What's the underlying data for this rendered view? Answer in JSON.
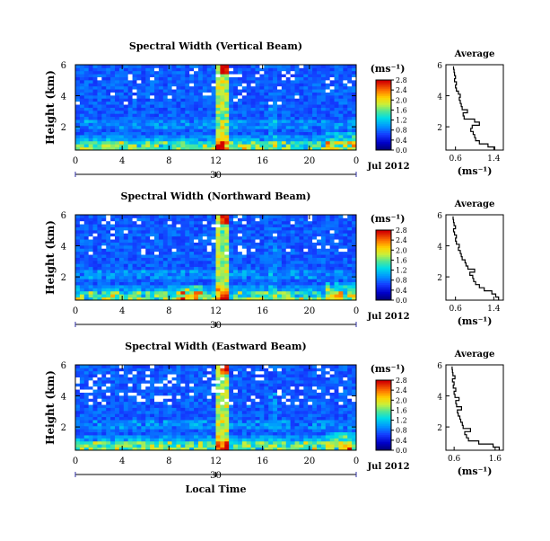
{
  "chart_data": [
    {
      "type": "heatmap",
      "title": "Spectral Width (Vertical Beam)",
      "ylabel": "Height (km)",
      "xticks": [
        "0",
        "4",
        "8",
        "12",
        "16",
        "20",
        "0"
      ],
      "yticks": [
        "2",
        "4",
        "6"
      ],
      "xlim": [
        0,
        24
      ],
      "ylim": [
        0.5,
        6
      ],
      "date": {
        "day": "30",
        "month_year": "Jul 2012"
      },
      "colorbar": {
        "unit": "(ms⁻¹)",
        "ticks": [
          "0.0",
          "0.4",
          "0.8",
          "1.2",
          "1.6",
          "2.0",
          "2.4",
          "2.8"
        ],
        "range": [
          0,
          2.8
        ]
      },
      "profile": {
        "title": "Average",
        "xlabel": "(ms⁻¹)",
        "xticks": [
          "0.6",
          "1.4"
        ],
        "yticks": [
          "2",
          "4",
          "6"
        ],
        "xlim": [
          0.4,
          1.6
        ],
        "ylim": [
          0.5,
          6
        ],
        "height": [
          0.6,
          0.8,
          1.0,
          1.2,
          1.4,
          1.6,
          1.8,
          2.0,
          2.2,
          2.4,
          2.6,
          2.8,
          3.0,
          3.2,
          3.4,
          3.6,
          3.8,
          4.0,
          4.2,
          4.4,
          4.6,
          4.8,
          5.0,
          5.2,
          5.4,
          5.6,
          5.8
        ],
        "width": [
          1.42,
          1.28,
          1.1,
          1.02,
          1.0,
          0.97,
          0.92,
          0.95,
          1.1,
          1.0,
          0.78,
          0.76,
          0.85,
          0.74,
          0.72,
          0.7,
          0.68,
          0.7,
          0.66,
          0.62,
          0.6,
          0.62,
          0.58,
          0.6,
          0.58,
          0.57,
          0.56
        ]
      }
    },
    {
      "type": "heatmap",
      "title": "Spectral Width (Northward Beam)",
      "ylabel": "Height (km)",
      "xticks": [
        "0",
        "4",
        "8",
        "12",
        "16",
        "20",
        "0"
      ],
      "yticks": [
        "2",
        "4",
        "6"
      ],
      "xlim": [
        0,
        24
      ],
      "ylim": [
        0.5,
        6
      ],
      "date": {
        "day": "30",
        "month_year": "Jul 2012"
      },
      "colorbar": {
        "unit": "(ms⁻¹)",
        "ticks": [
          "0.0",
          "0.4",
          "0.8",
          "1.2",
          "1.6",
          "2.0",
          "2.4",
          "2.8"
        ],
        "range": [
          0,
          2.8
        ]
      },
      "profile": {
        "title": "Average",
        "xlabel": "(ms⁻¹)",
        "xticks": [
          "0.6",
          "1.4"
        ],
        "yticks": [
          "2",
          "4",
          "6"
        ],
        "xlim": [
          0.4,
          1.6
        ],
        "ylim": [
          0.5,
          6
        ],
        "height": [
          0.6,
          0.8,
          1.0,
          1.2,
          1.4,
          1.6,
          1.8,
          2.0,
          2.2,
          2.4,
          2.6,
          2.8,
          3.0,
          3.2,
          3.4,
          3.6,
          3.8,
          4.0,
          4.2,
          4.4,
          4.6,
          4.8,
          5.0,
          5.2,
          5.4,
          5.6,
          5.8
        ],
        "width": [
          1.5,
          1.44,
          1.36,
          1.2,
          1.1,
          1.02,
          0.98,
          0.96,
          0.9,
          1.0,
          0.86,
          0.82,
          0.8,
          0.74,
          0.72,
          0.7,
          0.66,
          0.68,
          0.62,
          0.6,
          0.62,
          0.58,
          0.56,
          0.6,
          0.57,
          0.56,
          0.55
        ]
      }
    },
    {
      "type": "heatmap",
      "title": "Spectral Width (Eastward Beam)",
      "ylabel": "Height (km)",
      "xlabel": "Local Time",
      "xticks": [
        "0",
        "4",
        "8",
        "12",
        "16",
        "20",
        "0"
      ],
      "yticks": [
        "2",
        "4",
        "6"
      ],
      "xlim": [
        0,
        24
      ],
      "ylim": [
        0.5,
        6
      ],
      "date": {
        "day": "30",
        "month_year": "Jul 2012"
      },
      "colorbar": {
        "unit": "(ms⁻¹)",
        "ticks": [
          "0.0",
          "0.4",
          "0.8",
          "1.2",
          "1.6",
          "2.0",
          "2.4",
          "2.8"
        ],
        "range": [
          0,
          2.8
        ]
      },
      "profile": {
        "title": "Average",
        "xlabel": "(ms⁻¹)",
        "xticks": [
          "0.6",
          "1.6"
        ],
        "yticks": [
          "2",
          "4",
          "6"
        ],
        "xlim": [
          0.4,
          1.8
        ],
        "ylim": [
          0.5,
          6
        ],
        "height": [
          0.6,
          0.8,
          1.0,
          1.2,
          1.4,
          1.6,
          1.8,
          2.0,
          2.2,
          2.4,
          2.6,
          2.8,
          3.0,
          3.2,
          3.4,
          3.6,
          3.8,
          4.0,
          4.2,
          4.4,
          4.6,
          4.8,
          5.0,
          5.2,
          5.4,
          5.6,
          5.8
        ],
        "width": [
          1.7,
          1.55,
          1.2,
          0.95,
          0.9,
          0.86,
          1.0,
          0.82,
          0.8,
          0.76,
          0.74,
          0.7,
          0.68,
          0.78,
          0.66,
          0.64,
          0.72,
          0.62,
          0.6,
          0.64,
          0.58,
          0.6,
          0.56,
          0.62,
          0.57,
          0.56,
          0.55
        ]
      }
    }
  ]
}
